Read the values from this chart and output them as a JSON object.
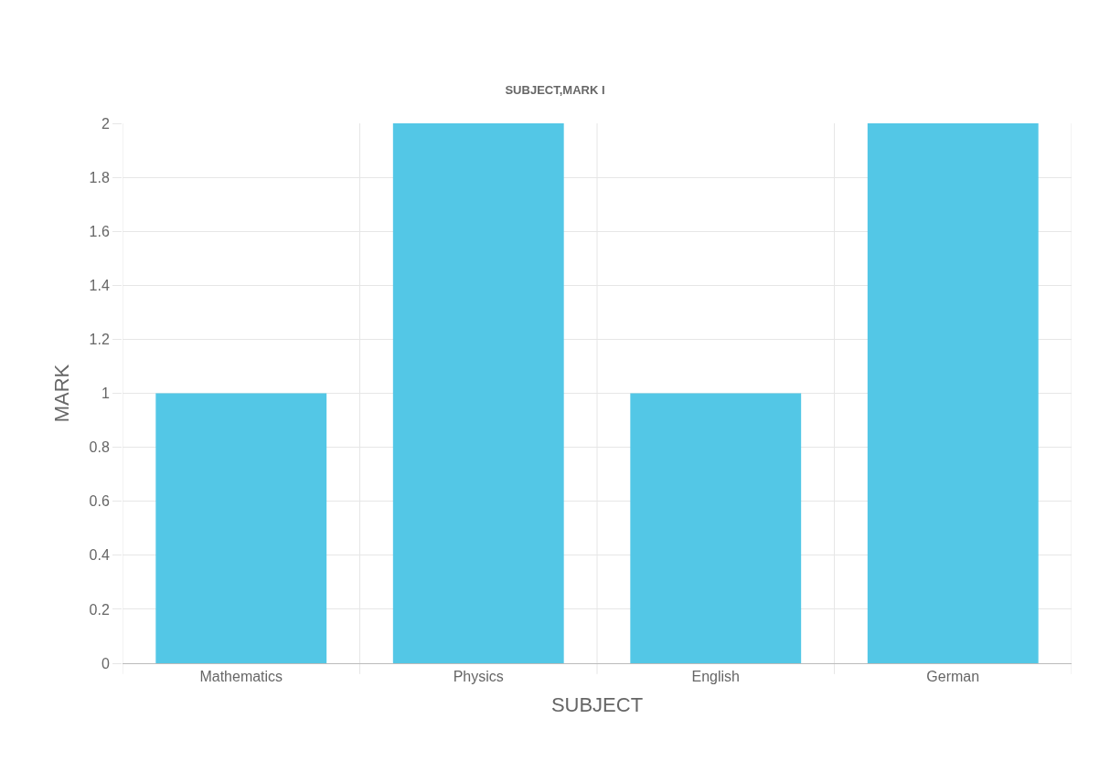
{
  "chart_data": {
    "type": "bar",
    "title": "SUBJECT,MARK I",
    "xlabel": "SUBJECT",
    "ylabel": "MARK",
    "categories": [
      "Mathematics",
      "Physics",
      "English",
      "German"
    ],
    "values": [
      1,
      2,
      1,
      2
    ],
    "color": "#53c7e6",
    "ylim": [
      0,
      2
    ],
    "yticks": [
      0,
      0.2,
      0.4,
      0.6,
      0.8,
      1,
      1.2,
      1.4,
      1.6,
      1.8,
      2
    ],
    "grid": true
  }
}
